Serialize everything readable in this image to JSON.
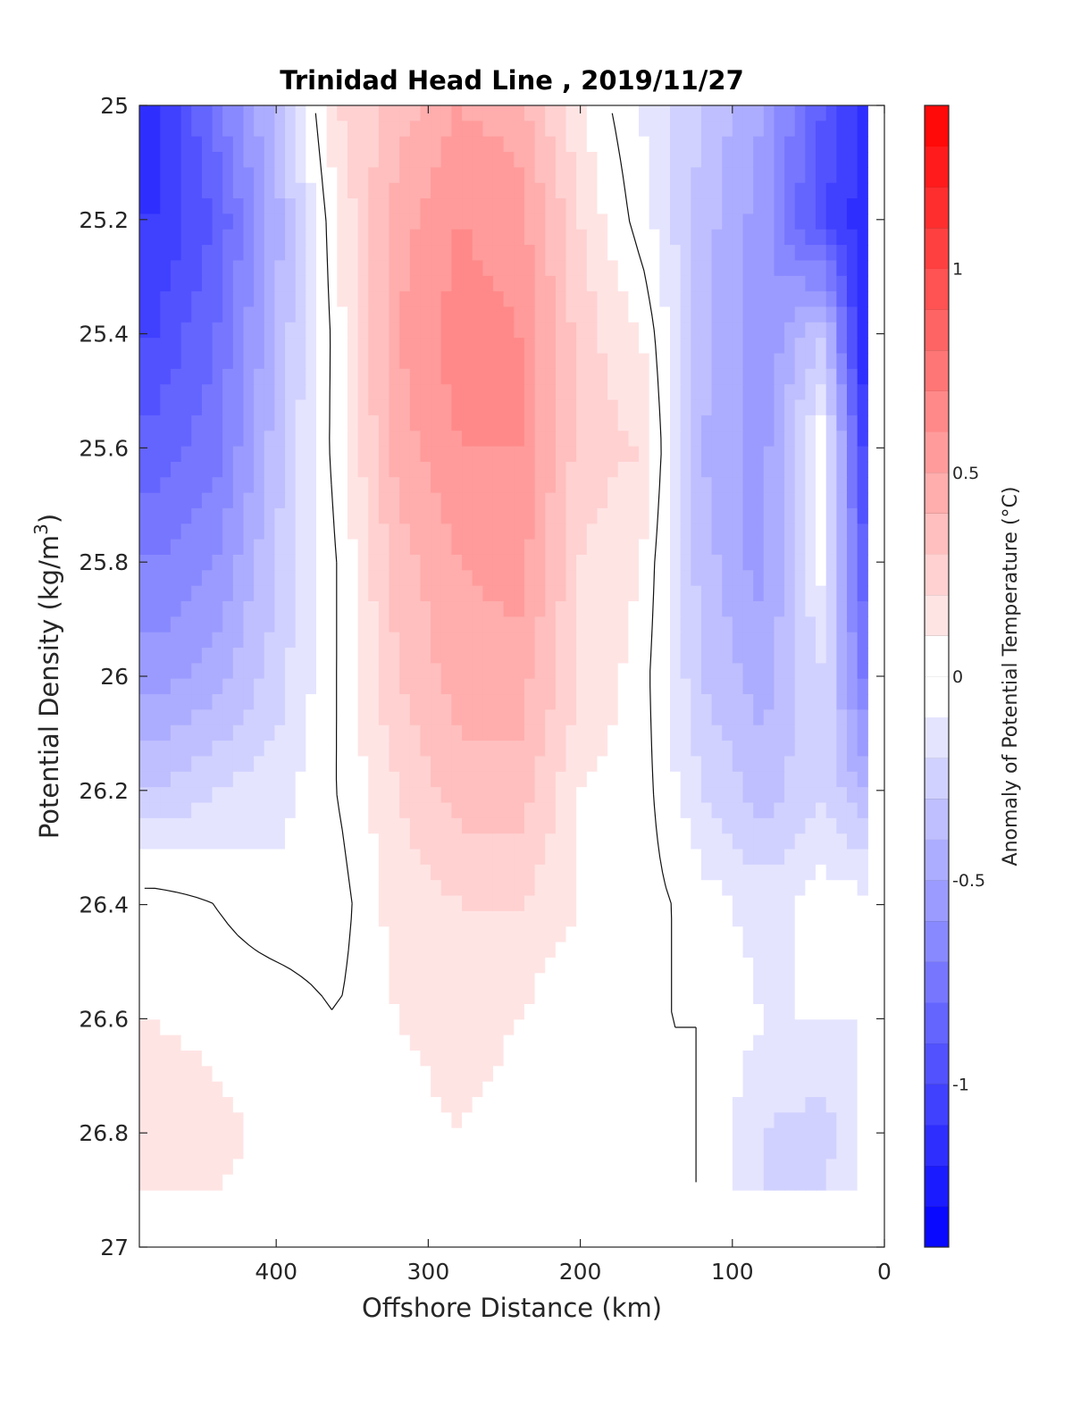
{
  "chart_data": {
    "type": "heatmap",
    "title": "Trinidad Head Line , 2019/11/27",
    "xlabel": "Offshore Distance (km)",
    "ylabel": "Potential Density (kg/m",
    "ylabel_sup": "3",
    "ylabel_close": ")",
    "colorbar_label": "Anomaly of Potential Temperature (°C)",
    "xlim": [
      490,
      0
    ],
    "ylim": [
      25,
      27
    ],
    "x_ticks": [
      "400",
      "300",
      "200",
      "100",
      "0"
    ],
    "x_tick_values": [
      400,
      300,
      200,
      100,
      0
    ],
    "y_ticks": [
      "25",
      "25.2",
      "25.4",
      "25.6",
      "25.8",
      "26",
      "26.2",
      "26.4",
      "26.6",
      "26.8",
      "27"
    ],
    "y_tick_values": [
      25,
      25.2,
      25.4,
      25.6,
      25.8,
      26,
      26.2,
      26.4,
      26.6,
      26.8,
      27
    ],
    "colorbar_ticks": [
      "1",
      "0.5",
      "0",
      "-0.5",
      "-1"
    ],
    "colorbar_tick_values": [
      1,
      0.5,
      0,
      -0.5,
      -1
    ],
    "clim": [
      -1.4,
      1.4
    ],
    "colormap": {
      "negative": "#0000ff",
      "zero": "#ffffff",
      "positive": "#ff0000"
    },
    "color_levels": 28,
    "data_extent_y": [
      25,
      26.9
    ],
    "x": [
      480,
      440,
      400,
      360,
      320,
      280,
      240,
      200,
      160,
      120,
      80,
      40,
      15
    ],
    "y": [
      25.0,
      25.2,
      25.4,
      25.6,
      25.8,
      26.0,
      26.2,
      26.4,
      26.6,
      26.8,
      26.9
    ],
    "z": [
      [
        -1.15,
        -0.75,
        -0.35,
        0.2,
        0.35,
        0.5,
        0.45,
        0.1,
        -0.1,
        -0.3,
        -0.5,
        -0.9,
        -1.1
      ],
      [
        -1.1,
        -0.9,
        -0.45,
        0.1,
        0.45,
        0.6,
        0.55,
        0.2,
        -0.05,
        -0.35,
        -0.55,
        -1.0,
        -1.15
      ],
      [
        -1.0,
        -0.8,
        -0.4,
        0.05,
        0.5,
        0.65,
        0.6,
        0.25,
        0.1,
        -0.35,
        -0.6,
        -0.3,
        -1.2
      ],
      [
        -0.85,
        -0.75,
        -0.35,
        0.05,
        0.45,
        0.6,
        0.6,
        0.25,
        0.2,
        -0.4,
        -0.55,
        0.0,
        -1.0
      ],
      [
        -0.7,
        -0.6,
        -0.3,
        0.0,
        0.35,
        0.5,
        0.55,
        0.2,
        0.1,
        -0.35,
        -0.55,
        -0.05,
        -0.85
      ],
      [
        -0.55,
        -0.45,
        -0.25,
        0.0,
        0.3,
        0.45,
        0.45,
        0.2,
        0.05,
        -0.3,
        -0.45,
        -0.2,
        -0.7
      ],
      [
        -0.3,
        -0.2,
        -0.15,
        0.0,
        0.2,
        0.35,
        0.35,
        0.1,
        0.05,
        -0.2,
        -0.35,
        -0.2,
        -0.4
      ],
      [
        0.05,
        0.0,
        -0.05,
        -0.05,
        0.15,
        0.2,
        0.2,
        0.1,
        0.05,
        -0.05,
        -0.15,
        -0.05,
        -0.05
      ],
      [
        0.1,
        0.05,
        0.05,
        0.0,
        0.1,
        0.15,
        0.1,
        0.0,
        0.0,
        0.0,
        -0.1,
        -0.1,
        -0.1
      ],
      [
        0.2,
        0.15,
        0.05,
        0.0,
        0.05,
        0.1,
        0.05,
        0.0,
        0.0,
        0.0,
        -0.2,
        -0.25,
        -0.1
      ],
      [
        0.1,
        0.1,
        0.05,
        0.0,
        0.05,
        0.05,
        0.0,
        0.0,
        0.0,
        0.0,
        -0.2,
        -0.2,
        -0.1
      ]
    ]
  }
}
